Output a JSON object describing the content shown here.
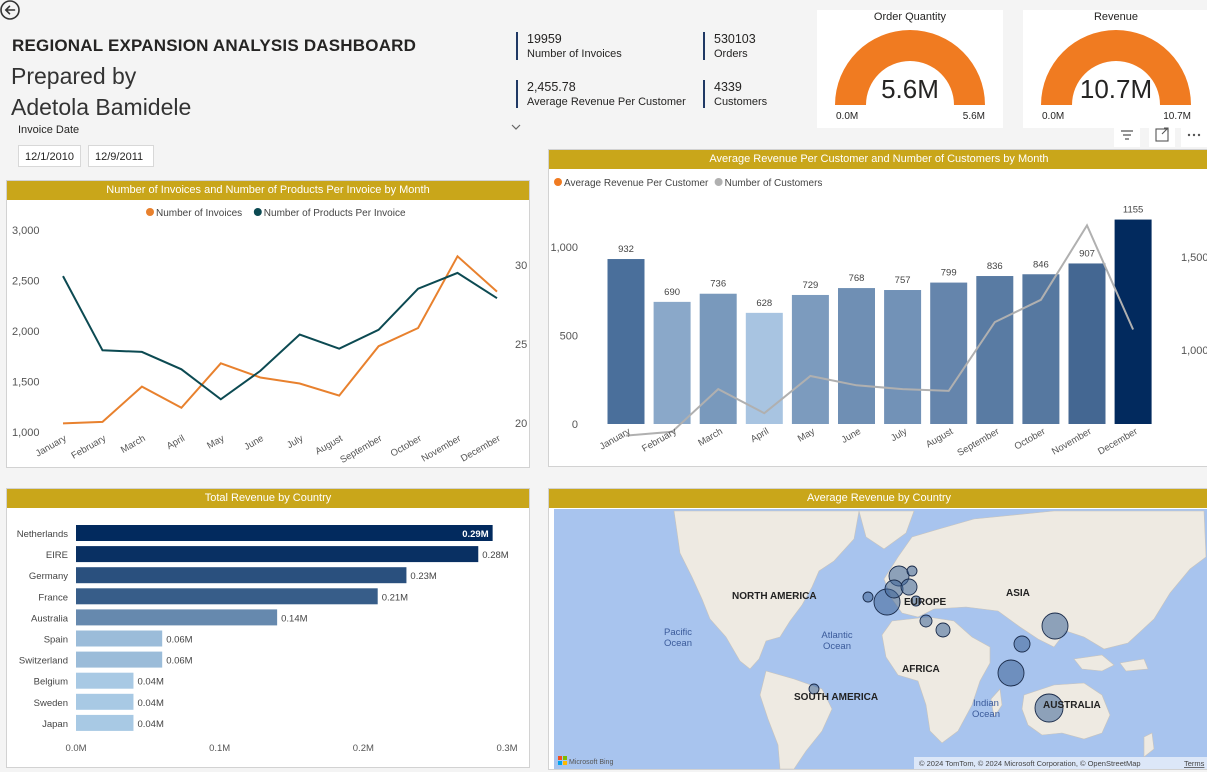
{
  "header": {
    "title": "REGIONAL EXPANSION ANALYSIS DASHBOARD",
    "subtitle_line1": "Prepared by",
    "subtitle_line2": "Adetola Bamidele"
  },
  "filter": {
    "label": "Invoice Date",
    "start_date": "12/1/2010",
    "end_date": "12/9/2011"
  },
  "kpis": [
    {
      "value": "19959",
      "label": "Number of Invoices"
    },
    {
      "value": "530103",
      "label": "Orders"
    },
    {
      "value": "2,455.78",
      "label": "Average Revenue Per Customer"
    },
    {
      "value": "4339",
      "label": "Customers"
    }
  ],
  "gauges": [
    {
      "title": "Order Quantity",
      "value": "5.6M",
      "min": "0.0M",
      "max": "5.6M",
      "fraction": 1.0,
      "color": "#f07b21"
    },
    {
      "title": "Revenue",
      "value": "10.7M",
      "min": "0.0M",
      "max": "10.7M",
      "fraction": 1.0,
      "color": "#f07b21"
    }
  ],
  "colors": {
    "header_bar": "#c9a61a",
    "orange": "#e8812e",
    "dark_teal": "#0c4a52",
    "navy": "#14365f",
    "gray_line": "#b0b0b0",
    "map_ocean": "#a8c4ee",
    "map_land": "#eeeae2"
  },
  "chart_data": [
    {
      "type": "line",
      "title": "Number of Invoices and Number of Products Per Invoice by Month",
      "categories": [
        "January",
        "February",
        "March",
        "April",
        "May",
        "June",
        "July",
        "August",
        "September",
        "October",
        "November",
        "December"
      ],
      "y_left_ticks": [
        "1,000",
        "1,500",
        "2,000",
        "2,500",
        "3,000"
      ],
      "y_left_range": [
        1000,
        3000
      ],
      "y_right_ticks": [
        "20",
        "25",
        "30"
      ],
      "y_right_range": [
        20,
        30
      ],
      "legend_position": "top-center",
      "series": [
        {
          "name": "Number of Invoices",
          "axis": "left",
          "color": "#e8812e",
          "values": [
            1085,
            1100,
            1450,
            1240,
            1680,
            1540,
            1480,
            1360,
            1850,
            2030,
            2740,
            2390
          ]
        },
        {
          "name": "Number of Products Per Invoice",
          "axis": "right",
          "color": "#0c4a52",
          "values": [
            29.3,
            24.6,
            24.5,
            23.4,
            21.5,
            23.3,
            25.6,
            24.7,
            25.9,
            28.5,
            29.5,
            27.9
          ]
        }
      ]
    },
    {
      "type": "bar",
      "title": "Average Revenue Per Customer and Number of Customers by Month",
      "categories": [
        "January",
        "February",
        "March",
        "April",
        "May",
        "June",
        "July",
        "August",
        "September",
        "October",
        "November",
        "December"
      ],
      "y_left_ticks": [
        "0",
        "500",
        "1,000"
      ],
      "y_left_range": [
        0,
        1250
      ],
      "y_right_ticks": [
        "1,000",
        "1,500"
      ],
      "y_right_range": [
        400,
        1700
      ],
      "legend_position": "top-left",
      "series": [
        {
          "name": "Average Revenue Per Customer",
          "type": "bar",
          "color": "#f07b21",
          "values": [
            932,
            690,
            736,
            628,
            729,
            768,
            757,
            799,
            836,
            846,
            907,
            1155
          ],
          "labels": [
            "932",
            "690",
            "736",
            "628",
            "729",
            "768",
            "757",
            "799",
            "836",
            "846",
            "907",
            "1155"
          ]
        },
        {
          "name": "Number of Customers",
          "type": "line",
          "color": "#b0b0b0",
          "values": [
            540,
            560,
            790,
            660,
            860,
            810,
            790,
            780,
            1150,
            1270,
            1670,
            1110
          ]
        }
      ]
    },
    {
      "type": "bar",
      "orientation": "horizontal",
      "title": "Total Revenue by Country",
      "categories": [
        "Netherlands",
        "EIRE",
        "Germany",
        "France",
        "Australia",
        "Spain",
        "Switzerland",
        "Belgium",
        "Sweden",
        "Japan"
      ],
      "values": [
        0.29,
        0.28,
        0.23,
        0.21,
        0.14,
        0.06,
        0.06,
        0.04,
        0.04,
        0.04
      ],
      "labels": [
        "0.29M",
        "0.28M",
        "0.23M",
        "0.21M",
        "0.14M",
        "0.06M",
        "0.06M",
        "0.04M",
        "0.04M",
        "0.04M"
      ],
      "x_ticks": [
        "0.0M",
        "0.1M",
        "0.2M",
        "0.3M"
      ],
      "xlim": [
        0,
        0.3
      ]
    }
  ],
  "map": {
    "title": "Average Revenue by Country",
    "continent_labels": [
      "NORTH AMERICA",
      "EUROPE",
      "ASIA",
      "AFRICA",
      "SOUTH AMERICA",
      "AUSTRALIA"
    ],
    "ocean_labels": [
      [
        "Pacific",
        "Ocean"
      ],
      [
        "Atlantic",
        "Ocean"
      ],
      [
        "Indian",
        "Ocean"
      ]
    ],
    "attribution": "© 2024 TomTom, © 2024 Microsoft Corporation, © OpenStreetMap",
    "terms": "Terms",
    "brand": "Microsoft Bing"
  }
}
